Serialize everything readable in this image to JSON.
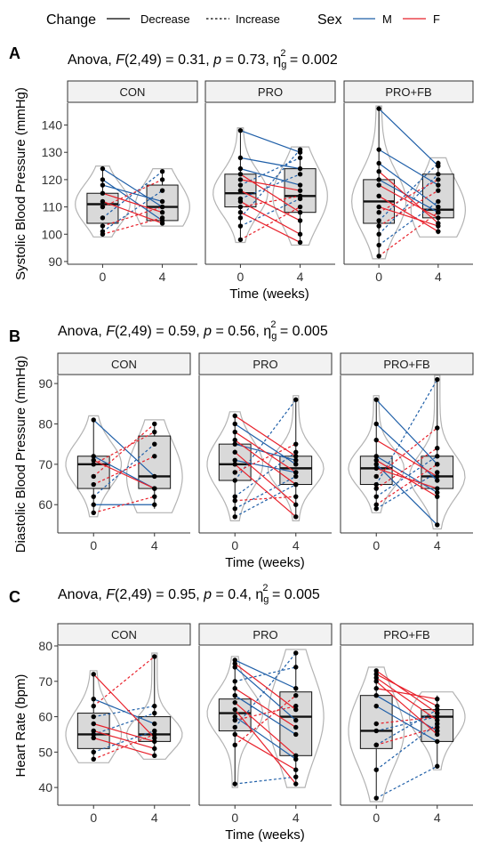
{
  "legend": {
    "change_title": "Change",
    "decrease_label": "Decrease",
    "increase_label": "Increase",
    "sex_title": "Sex",
    "m_label": "M",
    "f_label": "F"
  },
  "colors": {
    "M": "#1f5fa8",
    "F": "#e8202a",
    "box_fill": "#d9d9d9",
    "strip_fill": "#f2f2f2",
    "violin": "#b3b3b3"
  },
  "chart_data": [
    {
      "type": "box-violin-paired",
      "panel_letter": "A",
      "title": "Anova, F(2,49) = 0.31, p = 0.73, ηg2 = 0.002",
      "title_parts": {
        "pre": "Anova, ",
        "F": "F",
        "stats1": "(2,49) = 0.31, ",
        "p": "p",
        "stats2": " = 0.73, ",
        "eta": "η",
        "sub": "g",
        "sup": "2",
        "val": " = 0.002"
      },
      "ylabel": "Systolic Blood Pressure (mmHg)",
      "xlabel": "Time (weeks)",
      "ylim": [
        89,
        148
      ],
      "yticks": [
        90,
        100,
        110,
        120,
        130,
        140
      ],
      "x_categories": [
        "0",
        "4"
      ],
      "facets": [
        {
          "name": "CON",
          "box": [
            {
              "q1": 104,
              "median": 111,
              "q3": 115,
              "lo": 100,
              "hi": 124
            },
            {
              "q1": 105,
              "median": 110,
              "q3": 118,
              "lo": 104,
              "hi": 123
            }
          ],
          "violin_range": [
            [
              99,
              125
            ],
            [
              103,
              124
            ]
          ],
          "pairs": [
            {
              "sex": "M",
              "y0": 124,
              "y4": 110
            },
            {
              "sex": "M",
              "y0": 120,
              "y4": 105
            },
            {
              "sex": "M",
              "y0": 118,
              "y4": 112
            },
            {
              "sex": "M",
              "y0": 106,
              "y4": 123
            },
            {
              "sex": "M",
              "y0": 101,
              "y4": 116
            },
            {
              "sex": "F",
              "y0": 115,
              "y4": 108
            },
            {
              "sex": "F",
              "y0": 112,
              "y4": 104
            },
            {
              "sex": "F",
              "y0": 110,
              "y4": 120
            },
            {
              "sex": "F",
              "y0": 103,
              "y4": 110
            },
            {
              "sex": "F",
              "y0": 100,
              "y4": 106
            }
          ]
        },
        {
          "name": "PRO",
          "box": [
            {
              "q1": 110,
              "median": 115,
              "q3": 122,
              "lo": 98,
              "hi": 138
            },
            {
              "q1": 108,
              "median": 114,
              "q3": 124,
              "lo": 97,
              "hi": 131
            }
          ],
          "violin_range": [
            [
              97,
              139
            ],
            [
              96,
              132
            ]
          ],
          "pairs": [
            {
              "sex": "M",
              "y0": 138,
              "y4": 130
            },
            {
              "sex": "M",
              "y0": 128,
              "y4": 124
            },
            {
              "sex": "M",
              "y0": 124,
              "y4": 118
            },
            {
              "sex": "M",
              "y0": 118,
              "y4": 128
            },
            {
              "sex": "M",
              "y0": 113,
              "y4": 122
            },
            {
              "sex": "M",
              "y0": 106,
              "y4": 131
            },
            {
              "sex": "M",
              "y0": 103,
              "y4": 113
            },
            {
              "sex": "F",
              "y0": 122,
              "y4": 108
            },
            {
              "sex": "F",
              "y0": 120,
              "y4": 116
            },
            {
              "sex": "F",
              "y0": 116,
              "y4": 105
            },
            {
              "sex": "F",
              "y0": 112,
              "y4": 100
            },
            {
              "sex": "F",
              "y0": 110,
              "y4": 114
            },
            {
              "sex": "F",
              "y0": 108,
              "y4": 97
            },
            {
              "sex": "F",
              "y0": 98,
              "y4": 110
            }
          ]
        },
        {
          "name": "PRO+FB",
          "box": [
            {
              "q1": 104,
              "median": 112,
              "q3": 120,
              "lo": 92,
              "hi": 146
            },
            {
              "q1": 106,
              "median": 109,
              "q3": 122,
              "lo": 100,
              "hi": 127
            }
          ],
          "violin_range": [
            [
              91,
              147
            ],
            [
              99,
              128
            ]
          ],
          "pairs": [
            {
              "sex": "M",
              "y0": 146,
              "y4": 125
            },
            {
              "sex": "M",
              "y0": 131,
              "y4": 118
            },
            {
              "sex": "M",
              "y0": 126,
              "y4": 110
            },
            {
              "sex": "M",
              "y0": 120,
              "y4": 108
            },
            {
              "sex": "M",
              "y0": 105,
              "y4": 126
            },
            {
              "sex": "M",
              "y0": 100,
              "y4": 122
            },
            {
              "sex": "M",
              "y0": 96,
              "y4": 112
            },
            {
              "sex": "F",
              "y0": 123,
              "y4": 104
            },
            {
              "sex": "F",
              "y0": 118,
              "y4": 106
            },
            {
              "sex": "F",
              "y0": 114,
              "y4": 101
            },
            {
              "sex": "F",
              "y0": 110,
              "y4": 103
            },
            {
              "sex": "F",
              "y0": 108,
              "y4": 120
            },
            {
              "sex": "F",
              "y0": 103,
              "y4": 116
            },
            {
              "sex": "F",
              "y0": 92,
              "y4": 108
            }
          ]
        }
      ]
    },
    {
      "type": "box-violin-paired",
      "panel_letter": "B",
      "title": "Anova, F(2,49) = 0.59, p = 0.56, ηg2 = 0.005",
      "title_parts": {
        "pre": "Anova, ",
        "F": "F",
        "stats1": "(2,49) = 0.59, ",
        "p": "p",
        "stats2": " = 0.56, ",
        "eta": "η",
        "sub": "g",
        "sup": "2",
        "val": " = 0.005"
      },
      "ylabel": "Diastolic Blood Pressure (mmHg)",
      "xlabel": "Time (weeks)",
      "ylim": [
        53,
        92
      ],
      "yticks": [
        60,
        70,
        80,
        90
      ],
      "x_categories": [
        "0",
        "4"
      ],
      "facets": [
        {
          "name": "CON",
          "box": [
            {
              "q1": 64,
              "median": 70,
              "q3": 72,
              "lo": 58,
              "hi": 81
            },
            {
              "q1": 64,
              "median": 67,
              "q3": 77,
              "lo": 59,
              "hi": 80
            }
          ],
          "violin_range": [
            [
              57,
              82
            ],
            [
              58,
              81
            ]
          ],
          "pairs": [
            {
              "sex": "M",
              "y0": 81,
              "y4": 67
            },
            {
              "sex": "M",
              "y0": 72,
              "y4": 64
            },
            {
              "sex": "M",
              "y0": 62,
              "y4": 75
            },
            {
              "sex": "M",
              "y0": 60,
              "y4": 60
            },
            {
              "sex": "F",
              "y0": 71,
              "y4": 64
            },
            {
              "sex": "F",
              "y0": 70,
              "y4": 78
            },
            {
              "sex": "F",
              "y0": 67,
              "y4": 80
            },
            {
              "sex": "F",
              "y0": 65,
              "y4": 72
            },
            {
              "sex": "F",
              "y0": 58,
              "y4": 62
            }
          ]
        },
        {
          "name": "PRO",
          "box": [
            {
              "q1": 66,
              "median": 70,
              "q3": 75,
              "lo": 57,
              "hi": 82
            },
            {
              "q1": 65,
              "median": 69,
              "q3": 72,
              "lo": 57,
              "hi": 86
            }
          ],
          "violin_range": [
            [
              56,
              83
            ],
            [
              56,
              87
            ]
          ],
          "pairs": [
            {
              "sex": "M",
              "y0": 80,
              "y4": 70
            },
            {
              "sex": "M",
              "y0": 75,
              "y4": 71
            },
            {
              "sex": "M",
              "y0": 71,
              "y4": 68
            },
            {
              "sex": "M",
              "y0": 66,
              "y4": 86
            },
            {
              "sex": "M",
              "y0": 62,
              "y4": 73
            },
            {
              "sex": "M",
              "y0": 59,
              "y4": 67
            },
            {
              "sex": "M",
              "y0": 57,
              "y4": 65
            },
            {
              "sex": "F",
              "y0": 82,
              "y4": 72
            },
            {
              "sex": "F",
              "y0": 78,
              "y4": 68
            },
            {
              "sex": "F",
              "y0": 76,
              "y4": 65
            },
            {
              "sex": "F",
              "y0": 73,
              "y4": 60
            },
            {
              "sex": "F",
              "y0": 70,
              "y4": 57
            },
            {
              "sex": "F",
              "y0": 68,
              "y4": 75
            },
            {
              "sex": "F",
              "y0": 61,
              "y4": 62
            }
          ]
        },
        {
          "name": "PRO+FB",
          "box": [
            {
              "q1": 65,
              "median": 69,
              "q3": 72,
              "lo": 59,
              "hi": 86
            },
            {
              "q1": 64,
              "median": 67,
              "q3": 72,
              "lo": 55,
              "hi": 91
            }
          ],
          "violin_range": [
            [
              58,
              87
            ],
            [
              54,
              92
            ]
          ],
          "pairs": [
            {
              "sex": "M",
              "y0": 86,
              "y4": 70
            },
            {
              "sex": "M",
              "y0": 80,
              "y4": 66
            },
            {
              "sex": "M",
              "y0": 72,
              "y4": 63
            },
            {
              "sex": "M",
              "y0": 70,
              "y4": 55
            },
            {
              "sex": "M",
              "y0": 65,
              "y4": 91
            },
            {
              "sex": "M",
              "y0": 62,
              "y4": 72
            },
            {
              "sex": "M",
              "y0": 59,
              "y4": 68
            },
            {
              "sex": "F",
              "y0": 76,
              "y4": 67
            },
            {
              "sex": "F",
              "y0": 71,
              "y4": 62
            },
            {
              "sex": "F",
              "y0": 69,
              "y4": 64
            },
            {
              "sex": "F",
              "y0": 67,
              "y4": 79
            },
            {
              "sex": "F",
              "y0": 64,
              "y4": 74
            },
            {
              "sex": "F",
              "y0": 60,
              "y4": 70
            }
          ]
        }
      ]
    },
    {
      "type": "box-violin-paired",
      "panel_letter": "C",
      "title": "Anova, F(2,49) = 0.95, p = 0.4, ηg2 = 0.005",
      "title_parts": {
        "pre": "Anova, ",
        "F": "F",
        "stats1": "(2,49) = 0.95, ",
        "p": "p",
        "stats2": " = 0.4, ",
        "eta": "η",
        "sub": "g",
        "sup": "2",
        "val": " = 0.005"
      },
      "ylabel": "Heart Rate (bpm)",
      "xlabel": "Time (weeks)",
      "ylim": [
        35,
        80
      ],
      "yticks": [
        40,
        50,
        60,
        70,
        80
      ],
      "x_categories": [
        "0",
        "4"
      ],
      "facets": [
        {
          "name": "CON",
          "box": [
            {
              "q1": 51,
              "median": 55,
              "q3": 61,
              "lo": 48,
              "hi": 72
            },
            {
              "q1": 53,
              "median": 55,
              "q3": 60,
              "lo": 49,
              "hi": 77
            }
          ],
          "violin_range": [
            [
              47,
              73
            ],
            [
              48,
              78
            ]
          ],
          "pairs": [
            {
              "sex": "M",
              "y0": 65,
              "y4": 58
            },
            {
              "sex": "M",
              "y0": 60,
              "y4": 63
            },
            {
              "sex": "M",
              "y0": 55,
              "y4": 61
            },
            {
              "sex": "M",
              "y0": 50,
              "y4": 56
            },
            {
              "sex": "F",
              "y0": 72,
              "y4": 54
            },
            {
              "sex": "F",
              "y0": 63,
              "y4": 77
            },
            {
              "sex": "F",
              "y0": 58,
              "y4": 53
            },
            {
              "sex": "F",
              "y0": 56,
              "y4": 51
            },
            {
              "sex": "F",
              "y0": 54,
              "y4": 49
            },
            {
              "sex": "F",
              "y0": 48,
              "y4": 55
            }
          ]
        },
        {
          "name": "PRO",
          "box": [
            {
              "q1": 56,
              "median": 61,
              "q3": 65,
              "lo": 41,
              "hi": 76
            },
            {
              "q1": 49,
              "median": 60,
              "q3": 67,
              "lo": 41,
              "hi": 78
            }
          ],
          "violin_range": [
            [
              40,
              77
            ],
            [
              40,
              79
            ]
          ],
          "pairs": [
            {
              "sex": "M",
              "y0": 76,
              "y4": 68
            },
            {
              "sex": "M",
              "y0": 74,
              "y4": 59
            },
            {
              "sex": "M",
              "y0": 70,
              "y4": 74
            },
            {
              "sex": "M",
              "y0": 66,
              "y4": 55
            },
            {
              "sex": "M",
              "y0": 60,
              "y4": 48
            },
            {
              "sex": "M",
              "y0": 57,
              "y4": 78
            },
            {
              "sex": "M",
              "y0": 41,
              "y4": 43
            },
            {
              "sex": "F",
              "y0": 75,
              "y4": 62
            },
            {
              "sex": "F",
              "y0": 68,
              "y4": 57
            },
            {
              "sex": "F",
              "y0": 64,
              "y4": 49
            },
            {
              "sex": "F",
              "y0": 62,
              "y4": 41
            },
            {
              "sex": "F",
              "y0": 59,
              "y4": 63
            },
            {
              "sex": "F",
              "y0": 55,
              "y4": 45
            },
            {
              "sex": "F",
              "y0": 52,
              "y4": 66
            }
          ]
        },
        {
          "name": "PRO+FB",
          "box": [
            {
              "q1": 51,
              "median": 56,
              "q3": 66,
              "lo": 37,
              "hi": 73
            },
            {
              "q1": 53,
              "median": 60,
              "q3": 62,
              "lo": 46,
              "hi": 66
            }
          ],
          "violin_range": [
            [
              36,
              74
            ],
            [
              45,
              67
            ]
          ],
          "pairs": [
            {
              "sex": "M",
              "y0": 66,
              "y4": 56
            },
            {
              "sex": "M",
              "y0": 63,
              "y4": 53
            },
            {
              "sex": "M",
              "y0": 56,
              "y4": 60
            },
            {
              "sex": "M",
              "y0": 52,
              "y4": 62
            },
            {
              "sex": "M",
              "y0": 45,
              "y4": 58
            },
            {
              "sex": "M",
              "y0": 37,
              "y4": 46
            },
            {
              "sex": "F",
              "y0": 73,
              "y4": 61
            },
            {
              "sex": "F",
              "y0": 72,
              "y4": 63
            },
            {
              "sex": "F",
              "y0": 71,
              "y4": 59
            },
            {
              "sex": "F",
              "y0": 70,
              "y4": 55
            },
            {
              "sex": "F",
              "y0": 68,
              "y4": 65
            },
            {
              "sex": "F",
              "y0": 58,
              "y4": 60
            },
            {
              "sex": "F",
              "y0": 52,
              "y4": 57
            }
          ]
        }
      ]
    }
  ]
}
